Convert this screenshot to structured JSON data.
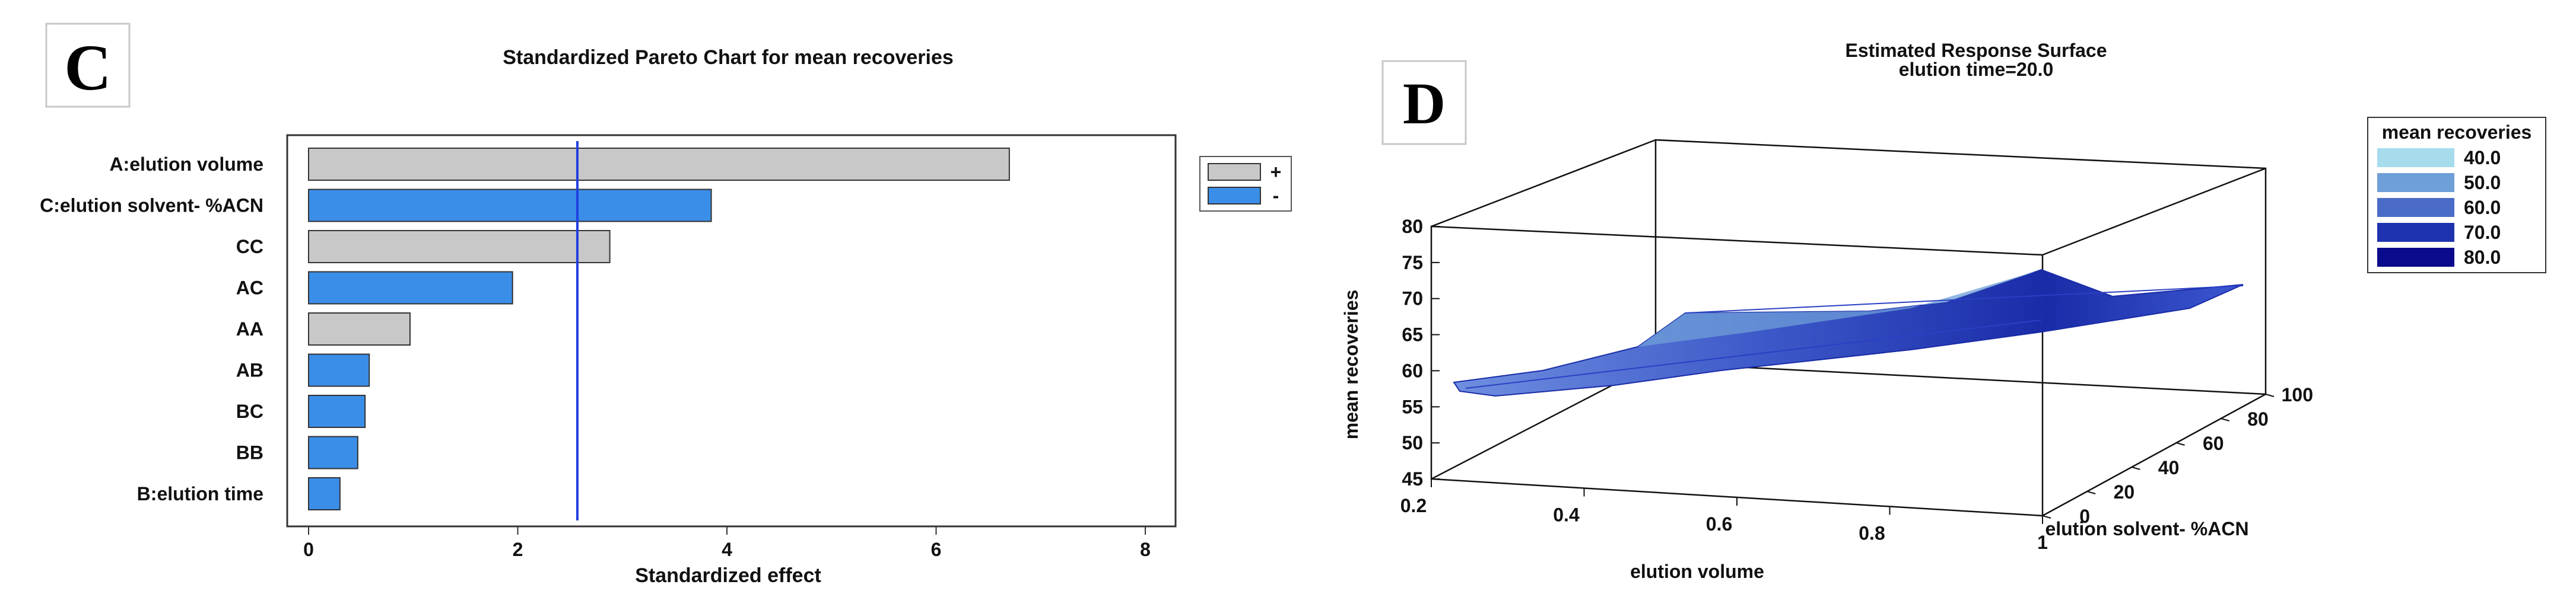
{
  "panels": {
    "c": {
      "letter": "C"
    },
    "d": {
      "letter": "D"
    }
  },
  "chart_data": [
    {
      "type": "bar",
      "orientation": "horizontal",
      "title": "Standardized Pareto Chart for mean recoveries",
      "xlabel": "Standardized effect",
      "ylabel": "",
      "xlim": [
        0,
        8
      ],
      "xticks": [
        0,
        2,
        4,
        6,
        8
      ],
      "categories": [
        "A:elution volume",
        "C:elution solvent- %ACN",
        "CC",
        "AC",
        "AA",
        "AB",
        "BC",
        "BB",
        "B:elution time"
      ],
      "values": [
        6.7,
        3.85,
        2.88,
        1.95,
        0.97,
        0.58,
        0.54,
        0.47,
        0.3
      ],
      "signs": [
        "+",
        "-",
        "+",
        "-",
        "+",
        "-",
        "-",
        "-",
        "-"
      ],
      "significance_line": 2.57,
      "legend": {
        "position": "right",
        "entries": [
          {
            "label": "+",
            "color": "#c8c8c8"
          },
          {
            "label": "-",
            "color": "#3b8ee8"
          }
        ]
      },
      "colors": {
        "positive": "#c8c8c8",
        "negative": "#3b8ee8",
        "line": "#1f3fe0"
      }
    },
    {
      "type": "surface",
      "title": "Estimated Response Surface",
      "subtitle": "elution time=20.0",
      "xlabel": "elution volume",
      "ylabel": "elution solvent- %ACN",
      "zlabel": "mean recoveries",
      "xlim": [
        0.2,
        1
      ],
      "ylim": [
        0,
        100
      ],
      "zlim": [
        45,
        80
      ],
      "xticks": [
        "0.2",
        "0.4",
        "0.6",
        "0.8",
        "1"
      ],
      "yticks": [
        "0",
        "20",
        "40",
        "60",
        "80",
        "100"
      ],
      "zticks": [
        "45",
        "50",
        "55",
        "60",
        "65",
        "70",
        "75",
        "80"
      ],
      "surface_corners": {
        "x0.2_y0": 58,
        "x1_y0": 73,
        "x0.2_y100": 69,
        "x1_y100": 73
      },
      "legend": {
        "title": "mean recoveries",
        "position": "right",
        "entries": [
          {
            "label": "40.0",
            "color": "#a6dcec"
          },
          {
            "label": "50.0",
            "color": "#6f9fd8"
          },
          {
            "label": "60.0",
            "color": "#4a6cc8"
          },
          {
            "label": "70.0",
            "color": "#1f33b0"
          },
          {
            "label": "80.0",
            "color": "#0a0a8c"
          }
        ]
      }
    }
  ]
}
